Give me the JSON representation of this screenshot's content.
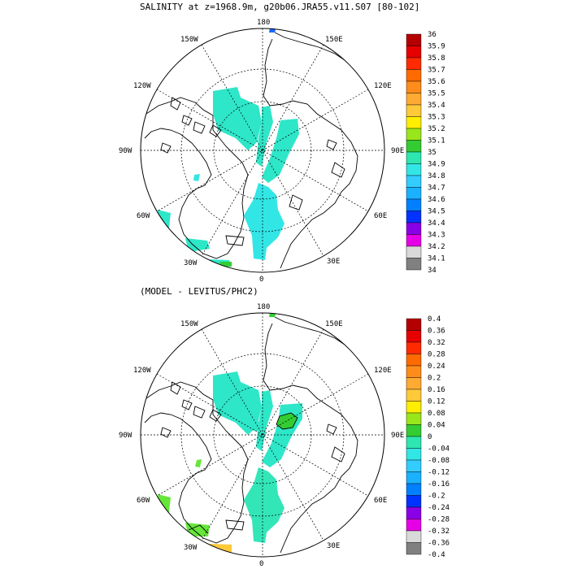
{
  "titles": {
    "top": "SALINITY at z=1968.9m, g20b06.JRA55.v11.S07 [80-102]",
    "bottom": "(MODEL - LEVITUS/PHC2)"
  },
  "longitude_labels": [
    "180",
    "150E",
    "120E",
    "90E",
    "60E",
    "30E",
    "0",
    "30W",
    "60W",
    "90W",
    "120W",
    "150W"
  ],
  "colorbars": [
    {
      "labels": [
        "36",
        "35.9",
        "35.8",
        "35.7",
        "35.6",
        "35.5",
        "35.4",
        "35.3",
        "35.2",
        "35.1",
        "35",
        "34.9",
        "34.8",
        "34.7",
        "34.6",
        "34.5",
        "34.4",
        "34.3",
        "34.2",
        "34.1",
        "34"
      ],
      "colors": [
        "#b40000",
        "#e60000",
        "#ff2a00",
        "#ff6a00",
        "#ff8c1a",
        "#ffaa33",
        "#ffc93a",
        "#ffee00",
        "#99e61a",
        "#33cc33",
        "#2ee6b0",
        "#33e6e6",
        "#33ccff",
        "#1ab2ff",
        "#0080ff",
        "#0033ff",
        "#8a00e6",
        "#e600e6",
        "#d9d9d9",
        "#808080"
      ]
    },
    {
      "labels": [
        "0.4",
        "0.36",
        "0.32",
        "0.28",
        "0.24",
        "0.2",
        "0.16",
        "0.12",
        "0.08",
        "0.04",
        "0",
        "-0.04",
        "-0.08",
        "-0.12",
        "-0.16",
        "-0.2",
        "-0.24",
        "-0.28",
        "-0.32",
        "-0.36",
        "-0.4"
      ],
      "colors": [
        "#b40000",
        "#e60000",
        "#ff2a00",
        "#ff6a00",
        "#ff8c1a",
        "#ffaa33",
        "#ffc93a",
        "#ffee00",
        "#99e61a",
        "#33cc33",
        "#2ee6b0",
        "#33e6e6",
        "#33ccff",
        "#1ab2ff",
        "#0080ff",
        "#0033ff",
        "#8a00e6",
        "#e600e6",
        "#d9d9d9",
        "#808080"
      ]
    }
  ]
}
